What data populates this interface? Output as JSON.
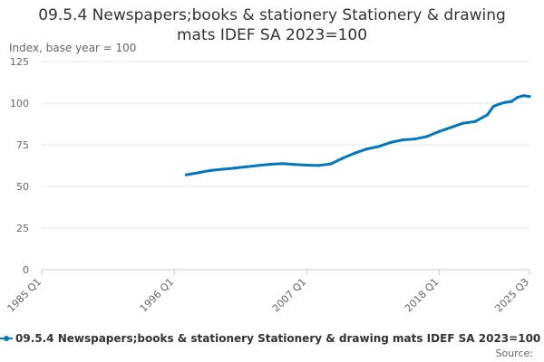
{
  "chart_data": {
    "type": "line",
    "title_lines": [
      "09.5.4 Newspapers;books & stationery Stationery & drawing",
      "mats IDEF SA 2023=100"
    ],
    "ylabel": "Index, base year = 100",
    "ylim": [
      0,
      125
    ],
    "yticks": [
      0,
      25,
      50,
      75,
      100,
      125
    ],
    "xticks": [
      "1985 Q1",
      "1996 Q1",
      "2007 Q1",
      "2018 Q1",
      "2025 Q3"
    ],
    "xlim": [
      "1985 Q1",
      "2025 Q3"
    ],
    "grid": true,
    "legend_position": "bottom",
    "series": [
      {
        "name": "09.5.4 Newspapers;books & stationery Stationery & drawing mats IDEF SA 2023=100",
        "color": "#0077bb",
        "points": [
          [
            "1997 Q1",
            57.0
          ],
          [
            "1998 Q1",
            58.2
          ],
          [
            "1999 Q1",
            59.6
          ],
          [
            "2000 Q1",
            60.3
          ],
          [
            "2001 Q1",
            61.0
          ],
          [
            "2002 Q1",
            61.8
          ],
          [
            "2003 Q1",
            62.6
          ],
          [
            "2004 Q1",
            63.3
          ],
          [
            "2005 Q1",
            63.7
          ],
          [
            "2006 Q1",
            63.2
          ],
          [
            "2007 Q1",
            62.8
          ],
          [
            "2008 Q1",
            62.6
          ],
          [
            "2009 Q1",
            63.5
          ],
          [
            "2010 Q1",
            67.0
          ],
          [
            "2011 Q1",
            70.0
          ],
          [
            "2012 Q1",
            72.5
          ],
          [
            "2013 Q1",
            74.0
          ],
          [
            "2014 Q1",
            76.5
          ],
          [
            "2015 Q1",
            78.0
          ],
          [
            "2016 Q1",
            78.5
          ],
          [
            "2017 Q1",
            80.0
          ],
          [
            "2018 Q1",
            83.0
          ],
          [
            "2019 Q1",
            85.5
          ],
          [
            "2020 Q1",
            88.0
          ],
          [
            "2021 Q1",
            89.0
          ],
          [
            "2022 Q1",
            93.0
          ],
          [
            "2022 Q3",
            98.0
          ],
          [
            "2023 Q1",
            99.5
          ],
          [
            "2023 Q3",
            100.5
          ],
          [
            "2024 Q1",
            101.0
          ],
          [
            "2024 Q3",
            103.5
          ],
          [
            "2025 Q1",
            104.5
          ],
          [
            "2025 Q3",
            104.0
          ]
        ]
      }
    ],
    "source_label": "Source:"
  }
}
